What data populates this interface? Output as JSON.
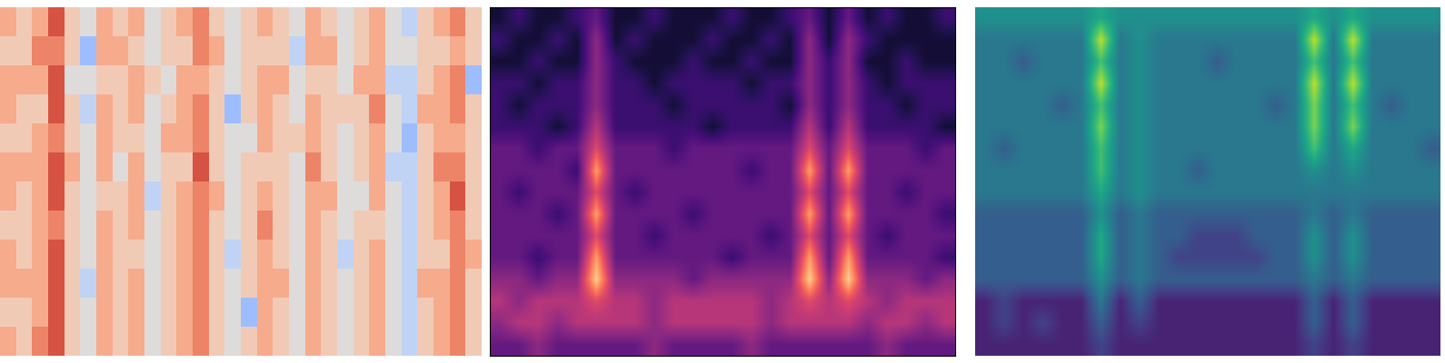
{
  "chart_data": [
    {
      "type": "heatmap",
      "zlim": [
        0,
        10
      ],
      "tick_labels": false,
      "cells": [
        [
          7,
          6,
          7,
          9,
          6,
          5,
          7,
          6,
          7,
          5,
          6,
          7,
          8,
          6,
          5,
          6,
          7,
          6,
          5,
          7,
          6,
          5,
          6,
          7,
          5,
          4,
          6,
          7,
          8,
          6
        ],
        [
          6,
          6,
          8,
          8,
          6,
          3,
          7,
          7,
          6,
          5,
          6,
          6,
          8,
          7,
          5,
          6,
          6,
          6,
          4,
          7,
          7,
          5,
          6,
          7,
          5,
          5,
          6,
          6,
          7,
          6
        ],
        [
          7,
          7,
          7,
          9,
          5,
          5,
          6,
          6,
          7,
          6,
          5,
          7,
          7,
          6,
          5,
          6,
          7,
          7,
          5,
          6,
          6,
          5,
          7,
          7,
          4,
          4,
          6,
          7,
          8,
          3
        ],
        [
          7,
          6,
          6,
          9,
          6,
          4,
          7,
          6,
          7,
          5,
          6,
          7,
          8,
          6,
          3,
          6,
          7,
          6,
          5,
          7,
          6,
          6,
          6,
          8,
          5,
          4,
          7,
          7,
          8,
          6
        ],
        [
          6,
          6,
          7,
          8,
          6,
          5,
          7,
          6,
          6,
          5,
          7,
          7,
          8,
          6,
          5,
          5,
          7,
          6,
          6,
          7,
          6,
          5,
          6,
          7,
          5,
          3,
          6,
          7,
          7,
          6
        ],
        [
          7,
          7,
          7,
          9,
          7,
          5,
          7,
          5,
          7,
          5,
          6,
          6,
          9,
          6,
          5,
          6,
          6,
          6,
          5,
          8,
          6,
          5,
          6,
          7,
          4,
          4,
          6,
          8,
          8,
          6
        ],
        [
          7,
          6,
          7,
          9,
          6,
          5,
          6,
          6,
          7,
          4,
          6,
          7,
          8,
          7,
          5,
          6,
          7,
          6,
          5,
          7,
          7,
          5,
          5,
          7,
          5,
          4,
          6,
          7,
          9,
          6
        ],
        [
          6,
          6,
          7,
          8,
          6,
          5,
          7,
          6,
          7,
          5,
          6,
          7,
          8,
          6,
          5,
          6,
          8,
          6,
          5,
          7,
          6,
          5,
          6,
          6,
          5,
          4,
          6,
          7,
          8,
          6
        ],
        [
          7,
          6,
          7,
          9,
          6,
          5,
          7,
          6,
          6,
          5,
          6,
          7,
          8,
          6,
          4,
          6,
          7,
          6,
          5,
          7,
          6,
          4,
          6,
          7,
          5,
          4,
          6,
          6,
          8,
          7
        ],
        [
          7,
          7,
          7,
          9,
          6,
          4,
          7,
          6,
          7,
          5,
          6,
          7,
          8,
          6,
          5,
          6,
          7,
          7,
          5,
          7,
          6,
          5,
          6,
          7,
          5,
          4,
          7,
          7,
          8,
          6
        ],
        [
          6,
          6,
          7,
          9,
          6,
          5,
          7,
          6,
          7,
          5,
          6,
          7,
          8,
          6,
          5,
          3,
          7,
          6,
          5,
          7,
          6,
          5,
          6,
          7,
          5,
          4,
          6,
          7,
          8,
          6
        ],
        [
          7,
          6,
          8,
          9,
          6,
          5,
          7,
          6,
          7,
          5,
          6,
          7,
          8,
          6,
          5,
          6,
          7,
          6,
          5,
          7,
          6,
          5,
          6,
          7,
          5,
          4,
          6,
          7,
          8,
          6
        ]
      ]
    },
    {
      "type": "heatmap",
      "zlim": [
        0,
        10
      ],
      "tick_labels": false,
      "cells": [
        [
          1,
          2,
          1,
          1,
          2,
          3,
          1,
          1,
          2,
          1,
          1,
          1,
          2,
          1,
          1,
          2,
          3,
          1,
          3,
          1,
          2,
          1,
          1,
          2
        ],
        [
          2,
          1,
          1,
          2,
          1,
          4,
          1,
          2,
          1,
          1,
          1,
          2,
          1,
          1,
          2,
          1,
          4,
          1,
          4,
          2,
          1,
          1,
          1,
          1
        ],
        [
          1,
          1,
          2,
          1,
          1,
          4,
          2,
          1,
          1,
          1,
          2,
          1,
          1,
          2,
          1,
          1,
          4,
          2,
          4,
          1,
          1,
          2,
          1,
          1
        ],
        [
          2,
          2,
          1,
          2,
          2,
          4,
          2,
          2,
          1,
          2,
          2,
          2,
          2,
          1,
          2,
          2,
          4,
          2,
          4,
          2,
          1,
          2,
          2,
          2
        ],
        [
          2,
          1,
          2,
          2,
          2,
          4,
          2,
          2,
          2,
          1,
          2,
          2,
          2,
          2,
          2,
          1,
          4,
          2,
          4,
          2,
          2,
          1,
          2,
          2
        ],
        [
          2,
          2,
          2,
          1,
          2,
          5,
          2,
          2,
          2,
          2,
          2,
          1,
          2,
          2,
          2,
          2,
          5,
          2,
          5,
          2,
          2,
          2,
          2,
          1
        ],
        [
          3,
          3,
          2,
          3,
          3,
          6,
          3,
          3,
          3,
          2,
          3,
          3,
          3,
          3,
          3,
          3,
          6,
          3,
          6,
          3,
          3,
          3,
          2,
          3
        ],
        [
          3,
          3,
          3,
          3,
          2,
          8,
          3,
          3,
          3,
          3,
          3,
          3,
          3,
          2,
          3,
          3,
          8,
          3,
          8,
          3,
          3,
          3,
          3,
          3
        ],
        [
          3,
          2,
          3,
          3,
          3,
          6,
          3,
          2,
          3,
          3,
          3,
          3,
          3,
          3,
          3,
          3,
          6,
          3,
          6,
          3,
          3,
          2,
          3,
          3
        ],
        [
          3,
          3,
          3,
          2,
          3,
          8,
          3,
          3,
          3,
          3,
          2,
          3,
          3,
          3,
          3,
          3,
          8,
          3,
          8,
          3,
          3,
          3,
          3,
          2
        ],
        [
          3,
          3,
          3,
          3,
          3,
          6,
          3,
          3,
          2,
          3,
          3,
          3,
          3,
          3,
          2,
          3,
          6,
          3,
          6,
          3,
          2,
          3,
          3,
          3
        ],
        [
          3,
          3,
          2,
          3,
          3,
          8,
          3,
          3,
          3,
          3,
          3,
          3,
          2,
          3,
          3,
          3,
          8,
          3,
          8,
          3,
          3,
          3,
          3,
          2
        ],
        [
          4,
          4,
          3,
          4,
          4,
          9,
          4,
          4,
          4,
          4,
          3,
          4,
          4,
          4,
          4,
          4,
          9,
          4,
          9,
          4,
          4,
          4,
          3,
          4
        ],
        [
          5,
          4,
          5,
          5,
          5,
          6,
          5,
          5,
          4,
          5,
          5,
          5,
          5,
          5,
          4,
          5,
          6,
          5,
          6,
          5,
          4,
          5,
          5,
          5
        ],
        [
          4,
          5,
          5,
          4,
          5,
          5,
          5,
          5,
          4,
          5,
          5,
          5,
          5,
          5,
          4,
          5,
          5,
          5,
          5,
          4,
          5,
          5,
          4,
          5
        ],
        [
          3,
          3,
          4,
          3,
          3,
          3,
          3,
          3,
          4,
          3,
          3,
          3,
          3,
          4,
          3,
          3,
          3,
          3,
          3,
          3,
          4,
          3,
          3,
          3
        ]
      ]
    },
    {
      "type": "heatmap",
      "zlim": [
        0,
        10
      ],
      "tick_labels": false,
      "cells": [
        [
          5,
          5,
          5,
          5,
          5,
          5,
          6,
          5,
          5,
          5,
          5,
          5,
          5,
          5,
          5,
          5,
          5,
          6,
          5,
          6,
          5,
          5,
          5,
          5
        ],
        [
          4,
          4,
          4,
          4,
          4,
          4,
          9,
          4,
          5,
          4,
          4,
          4,
          4,
          4,
          4,
          4,
          4,
          9,
          4,
          9,
          4,
          4,
          4,
          4
        ],
        [
          4,
          4,
          3,
          4,
          4,
          4,
          7,
          4,
          5,
          4,
          4,
          4,
          3,
          4,
          4,
          4,
          4,
          7,
          4,
          7,
          4,
          4,
          4,
          4
        ],
        [
          4,
          4,
          4,
          4,
          4,
          4,
          9,
          4,
          5,
          4,
          4,
          4,
          4,
          4,
          4,
          4,
          4,
          9,
          4,
          9,
          4,
          4,
          4,
          4
        ],
        [
          4,
          4,
          4,
          4,
          3,
          4,
          7,
          4,
          5,
          4,
          4,
          4,
          4,
          4,
          4,
          3,
          4,
          8,
          4,
          7,
          4,
          3,
          4,
          4
        ],
        [
          4,
          4,
          4,
          4,
          4,
          4,
          8,
          4,
          5,
          4,
          4,
          4,
          4,
          4,
          4,
          4,
          4,
          8,
          4,
          8,
          4,
          4,
          4,
          4
        ],
        [
          4,
          3,
          4,
          4,
          4,
          4,
          7,
          4,
          5,
          4,
          4,
          4,
          4,
          4,
          4,
          4,
          4,
          7,
          4,
          6,
          4,
          4,
          4,
          3
        ],
        [
          4,
          4,
          4,
          4,
          4,
          4,
          7,
          4,
          5,
          4,
          4,
          3,
          4,
          4,
          4,
          4,
          4,
          5,
          4,
          5,
          4,
          4,
          4,
          4
        ],
        [
          4,
          4,
          4,
          4,
          4,
          4,
          6,
          4,
          5,
          4,
          4,
          4,
          4,
          4,
          4,
          4,
          4,
          4,
          4,
          4,
          4,
          4,
          4,
          4
        ],
        [
          3,
          3,
          3,
          3,
          3,
          3,
          5,
          3,
          4,
          3,
          3,
          3,
          3,
          3,
          3,
          3,
          3,
          4,
          3,
          4,
          3,
          3,
          3,
          3
        ],
        [
          3,
          3,
          3,
          3,
          3,
          3,
          6,
          3,
          4,
          3,
          3,
          2,
          2,
          2,
          3,
          3,
          3,
          5,
          3,
          5,
          3,
          3,
          3,
          3
        ],
        [
          3,
          3,
          3,
          3,
          3,
          3,
          6,
          3,
          4,
          3,
          2,
          2,
          2,
          2,
          2,
          3,
          3,
          5,
          3,
          5,
          3,
          3,
          3,
          3
        ],
        [
          3,
          3,
          3,
          3,
          3,
          3,
          5,
          3,
          4,
          3,
          3,
          3,
          3,
          3,
          3,
          3,
          3,
          4,
          3,
          4,
          3,
          3,
          3,
          3
        ],
        [
          1,
          2,
          1,
          1,
          1,
          1,
          4,
          1,
          3,
          1,
          1,
          1,
          1,
          1,
          1,
          1,
          1,
          3,
          1,
          3,
          1,
          1,
          1,
          1
        ],
        [
          1,
          2,
          1,
          2,
          1,
          1,
          3,
          1,
          2,
          1,
          1,
          1,
          1,
          1,
          1,
          1,
          1,
          3,
          1,
          3,
          1,
          1,
          1,
          1
        ],
        [
          1,
          1,
          1,
          1,
          1,
          1,
          2,
          1,
          1,
          1,
          1,
          1,
          1,
          1,
          1,
          1,
          1,
          2,
          1,
          2,
          1,
          1,
          1,
          1
        ]
      ]
    }
  ]
}
